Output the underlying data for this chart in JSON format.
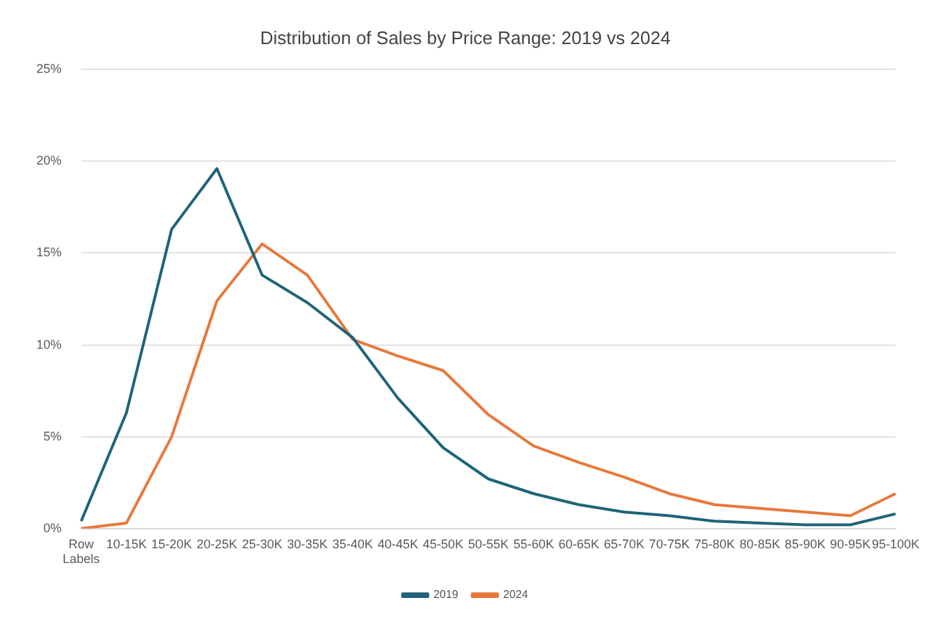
{
  "chart_data": {
    "type": "line",
    "title": "Distribution of Sales by Price Range: 2019 vs 2024",
    "categories": [
      "Row Labels",
      "10-15K",
      "15-20K",
      "20-25K",
      "25-30K",
      "30-35K",
      "35-40K",
      "40-45K",
      "45-50K",
      "50-55K",
      "55-60K",
      "60-65K",
      "65-70K",
      "70-75K",
      "75-80K",
      "80-85K",
      "85-90K",
      "90-95K",
      "95-100K"
    ],
    "series": [
      {
        "name": "2019",
        "color": "#1f6478",
        "values": [
          0.4,
          6.3,
          16.3,
          19.6,
          13.8,
          12.3,
          10.4,
          7.1,
          4.4,
          2.7,
          1.9,
          1.3,
          0.9,
          0.7,
          0.4,
          0.3,
          0.2,
          0.2,
          0.8
        ]
      },
      {
        "name": "2024",
        "color": "#e8783a",
        "values": [
          0,
          0.3,
          5.0,
          12.4,
          15.5,
          13.8,
          10.3,
          9.4,
          8.6,
          6.2,
          4.5,
          3.6,
          2.8,
          1.9,
          1.3,
          1.1,
          0.9,
          0.7,
          1.9
        ]
      }
    ],
    "ylim": [
      0,
      25
    ],
    "yticks": [
      {
        "value": 0,
        "label": "0%"
      },
      {
        "value": 5,
        "label": "5%"
      },
      {
        "value": 10,
        "label": "10%"
      },
      {
        "value": 15,
        "label": "15%"
      },
      {
        "value": 20,
        "label": "20%"
      },
      {
        "value": 25,
        "label": "25%"
      }
    ],
    "grid": "y",
    "legend": "bottom",
    "marker": "none",
    "line_style": "solid"
  }
}
